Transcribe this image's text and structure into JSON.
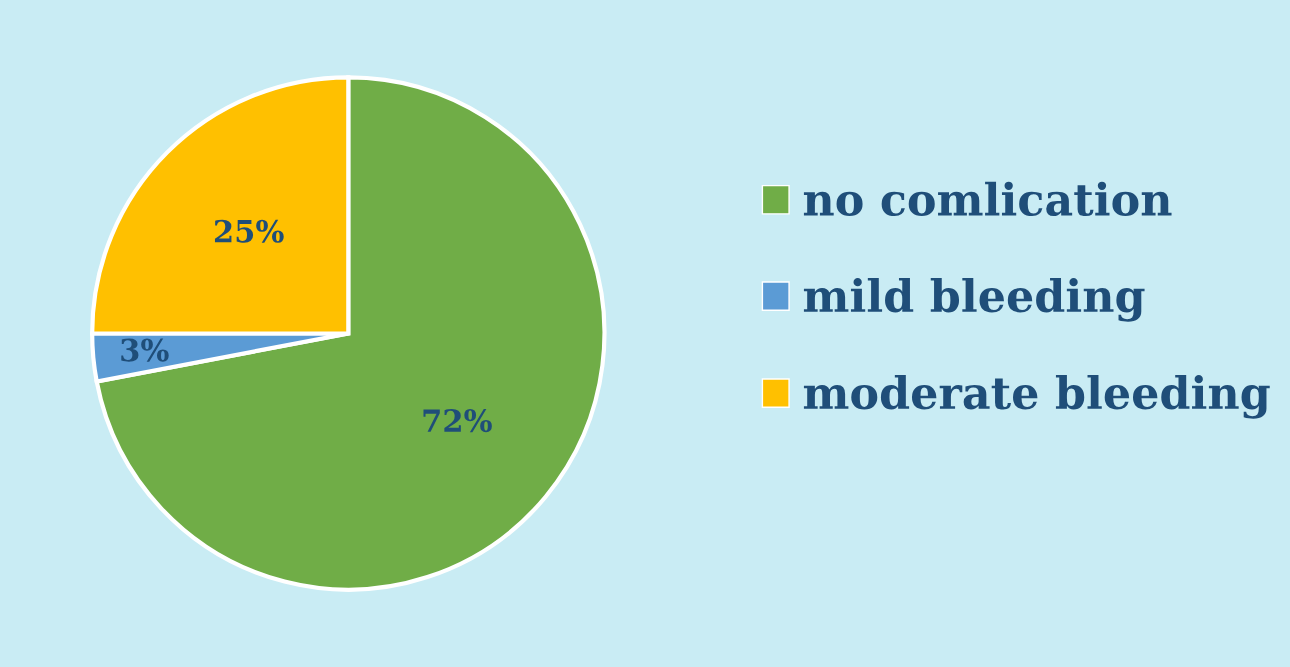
{
  "chart_data": {
    "type": "pie",
    "categories": [
      "no comlication",
      "mild bleeding",
      "moderate bleeding"
    ],
    "values": [
      72,
      3,
      25
    ],
    "colors": [
      "#70ad47",
      "#5b9bd5",
      "#ffc000"
    ],
    "value_labels": [
      "72%",
      "3%",
      "25%"
    ],
    "legend": "right"
  }
}
